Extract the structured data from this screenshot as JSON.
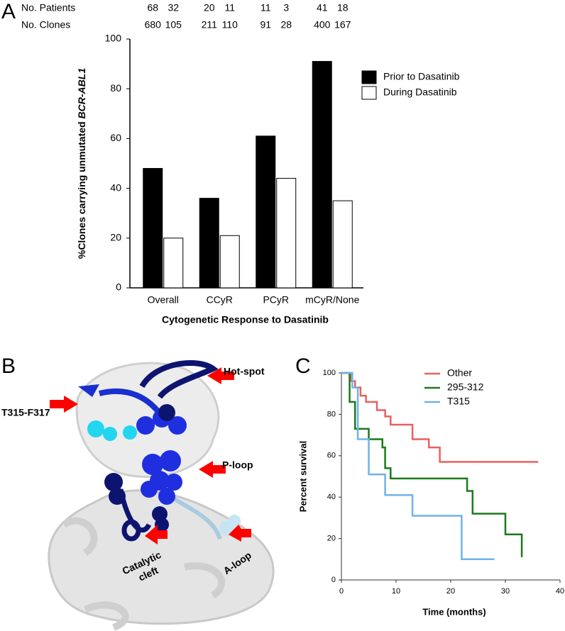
{
  "panel_labels": [
    "A",
    "B",
    "C"
  ],
  "counts": [
    {
      "label": "No. Patients",
      "values": [
        68,
        32,
        20,
        11,
        11,
        3,
        41,
        18
      ]
    },
    {
      "label": "No. Clones",
      "values": [
        680,
        105,
        211,
        110,
        91,
        28,
        400,
        167
      ]
    }
  ],
  "structure_labels": {
    "hot_spot": "Hot-spot",
    "t315": "T315-F317",
    "p_loop": "P-loop",
    "catalytic": [
      "Catalytic",
      "cleft"
    ],
    "a_loop": "A-loop"
  },
  "chart_data": [
    {
      "type": "bar",
      "categories": [
        "Overall",
        "CCyR",
        "PCyR",
        "mCyR/None"
      ],
      "series": [
        {
          "name": "Prior to Dasatinib",
          "color": "#000000",
          "values": [
            48,
            36,
            61,
            91
          ]
        },
        {
          "name": "During Dasatinib",
          "color": "#ffffff",
          "values": [
            20,
            21,
            44,
            35
          ]
        }
      ],
      "edge_color": "#000000",
      "ylim": [
        0,
        100
      ],
      "yticks": [
        0,
        20,
        40,
        60,
        80,
        100
      ],
      "xlabel": "Cytogenetic Response to Dasatinib",
      "ylabel_parts": [
        "%Clones carrying unmutated",
        "BCR-ABL1"
      ],
      "legend": "right"
    },
    {
      "type": "line",
      "step": true,
      "series": [
        {
          "name": "Other",
          "color": "#e8615f",
          "x": [
            0,
            1.7,
            2.5,
            3.5,
            4.5,
            6.5,
            8,
            9,
            13,
            16,
            18,
            36
          ],
          "values": [
            100,
            96,
            93,
            89,
            86,
            82,
            79,
            75,
            68,
            64,
            57,
            57
          ]
        },
        {
          "name": "295-312",
          "color": "#1a7a1a",
          "x": [
            0,
            1.5,
            2.5,
            5,
            7.5,
            8,
            9,
            23,
            24,
            30,
            33
          ],
          "values": [
            100,
            86,
            73,
            68,
            64,
            54,
            49,
            43,
            32,
            22,
            11
          ]
        },
        {
          "name": "T315",
          "color": "#6fb3e8",
          "x": [
            0,
            2,
            3,
            5,
            8,
            13,
            22,
            28
          ],
          "values": [
            100,
            93,
            68,
            51,
            41,
            31,
            10,
            10
          ]
        }
      ],
      "xlim": [
        0,
        40
      ],
      "xticks": [
        0,
        10,
        20,
        30,
        40
      ],
      "ylim": [
        0,
        100
      ],
      "yticks": [
        0,
        20,
        40,
        60,
        80,
        100
      ],
      "xlabel": "Time (months)",
      "ylabel": "Percent survival",
      "legend": "upper right"
    }
  ]
}
